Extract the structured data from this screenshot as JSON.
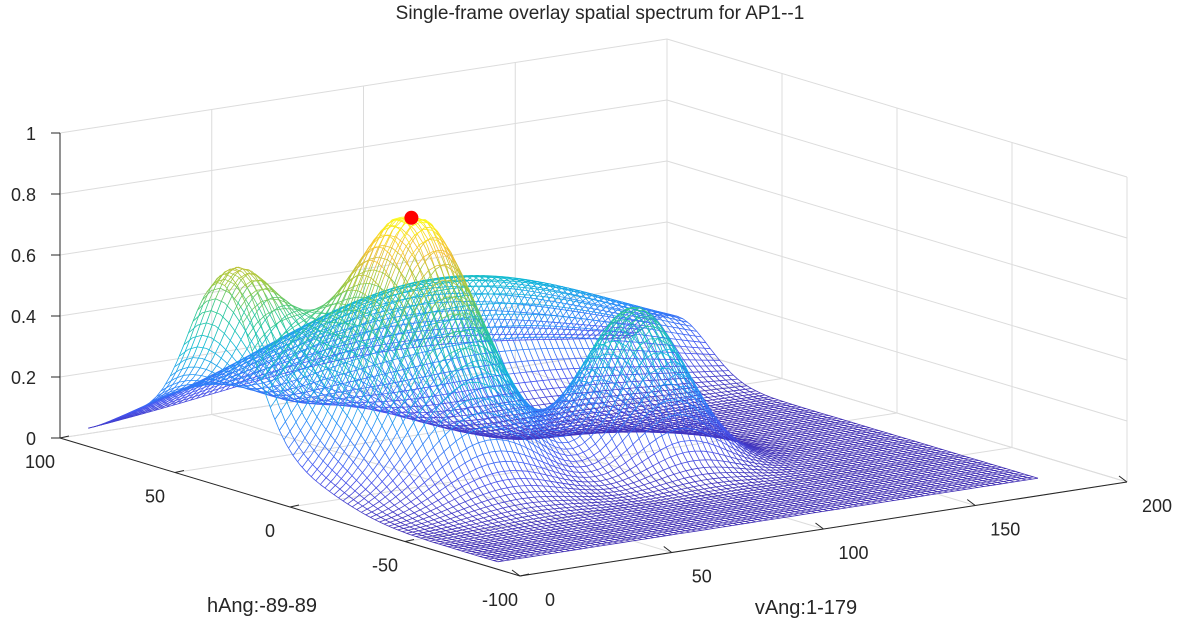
{
  "chart_data": {
    "type": "surface",
    "title": "Single-frame overlay spatial spectrum for AP1--1",
    "xlabel": "vAng:1-179",
    "ylabel": "hAng:-89-89",
    "zlabel": "",
    "xlim": [
      0,
      200
    ],
    "ylim": [
      -100,
      100
    ],
    "zlim": [
      0,
      1
    ],
    "x_ticks": [
      "0",
      "50",
      "100",
      "150",
      "200"
    ],
    "y_ticks": [
      "-100",
      "-50",
      "0",
      "50",
      "100"
    ],
    "z_ticks": [
      "0",
      "0.2",
      "0.4",
      "0.6",
      "0.8",
      "1"
    ],
    "x_range": [
      1,
      179
    ],
    "y_range": [
      -89,
      89
    ],
    "grid": true,
    "colormap": "parula",
    "peak": {
      "x": 40,
      "y": 0,
      "z": 0.88,
      "color": "#ff0000"
    },
    "components": [
      {
        "x": 40,
        "y": 0,
        "z": 0.88,
        "sx": 18,
        "sy": 20
      },
      {
        "x": 5,
        "y": 32,
        "z": 0.64,
        "sx": 14,
        "sy": 15
      },
      {
        "x": 100,
        "y": -18,
        "z": 0.52,
        "sx": 14,
        "sy": 13
      },
      {
        "x": 100,
        "y": 68,
        "z": 0.42,
        "sx": 60,
        "sy": 14
      }
    ]
  }
}
